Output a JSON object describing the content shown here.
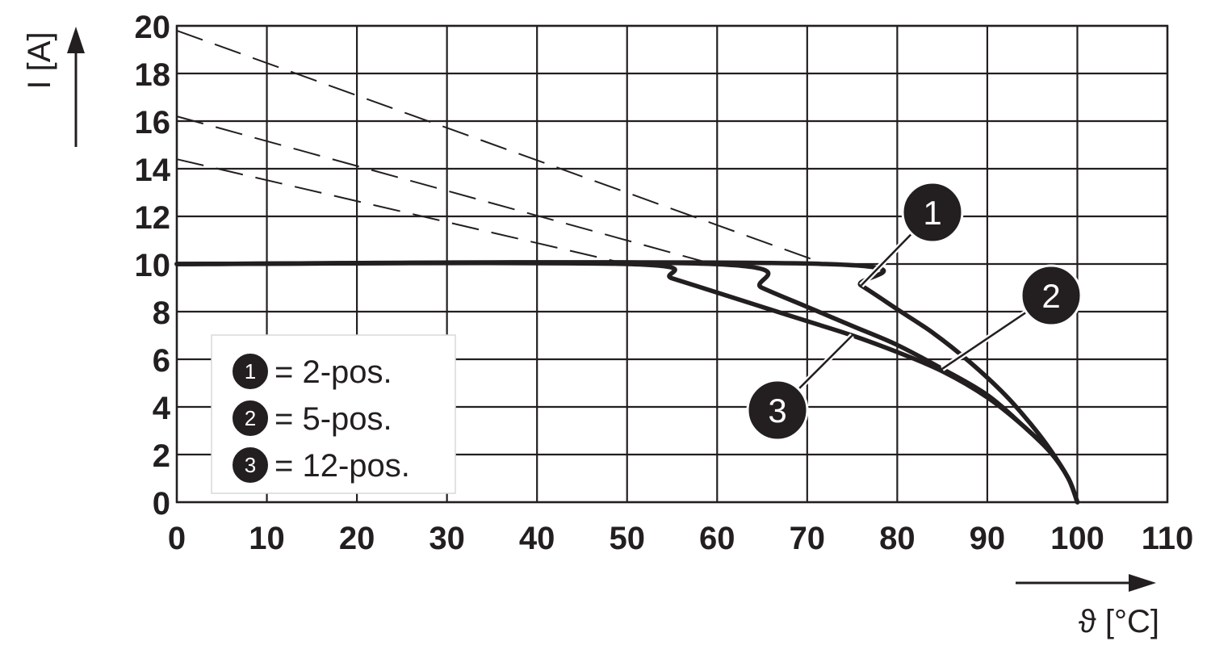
{
  "chart_data": {
    "type": "line",
    "xlabel": "ϑ [°C]",
    "ylabel": "I [A]",
    "xlim": [
      0,
      110
    ],
    "ylim": [
      0,
      20
    ],
    "xticks": [
      "0",
      "10",
      "20",
      "30",
      "40",
      "50",
      "60",
      "70",
      "80",
      "90",
      "100",
      "110"
    ],
    "yticks": [
      "0",
      "2",
      "4",
      "6",
      "8",
      "10",
      "12",
      "14",
      "16",
      "18",
      "20"
    ],
    "grid": true,
    "legend": {
      "placement": "bottom-left",
      "entries": [
        {
          "number": "1",
          "text": "= 2-pos."
        },
        {
          "number": "2",
          "text": "= 5-pos."
        },
        {
          "number": "3",
          "text": "= 12-pos."
        }
      ]
    },
    "series": [
      {
        "name": "1",
        "x": [
          0,
          72,
          76,
          80,
          84,
          88,
          92,
          95,
          97,
          99,
          100
        ],
        "y": [
          10,
          10,
          9.1,
          8.1,
          7.1,
          5.9,
          4.5,
          3.2,
          2.2,
          1.0,
          0
        ]
      },
      {
        "name": "2",
        "x": [
          0,
          59.5,
          65,
          70,
          75,
          80,
          85,
          90,
          94,
          97,
          99,
          100
        ],
        "y": [
          10,
          10,
          9.0,
          8.2,
          7.4,
          6.6,
          5.6,
          4.5,
          3.2,
          2.1,
          1.0,
          0
        ]
      },
      {
        "name": "3",
        "x": [
          0,
          50,
          55,
          60,
          65,
          70,
          75,
          80,
          85,
          90,
          94,
          97,
          99,
          100
        ],
        "y": [
          10,
          10,
          9.4,
          8.8,
          8.2,
          7.6,
          7.0,
          6.3,
          5.5,
          4.4,
          3.2,
          2.1,
          1.0,
          0
        ]
      }
    ],
    "extrapolated_series": [
      {
        "series": "1",
        "x": [
          0,
          72
        ],
        "y": [
          19.8,
          10
        ]
      },
      {
        "series": "2",
        "x": [
          0,
          59.5
        ],
        "y": [
          16.2,
          10
        ]
      },
      {
        "series": "3",
        "x": [
          0,
          50
        ],
        "y": [
          14.4,
          10
        ]
      }
    ],
    "callouts": [
      {
        "number": "1",
        "series": "1",
        "at_x": 76
      },
      {
        "number": "2",
        "series": "2",
        "at_x": 85
      },
      {
        "number": "3",
        "series": "3",
        "at_x": 75
      }
    ]
  }
}
